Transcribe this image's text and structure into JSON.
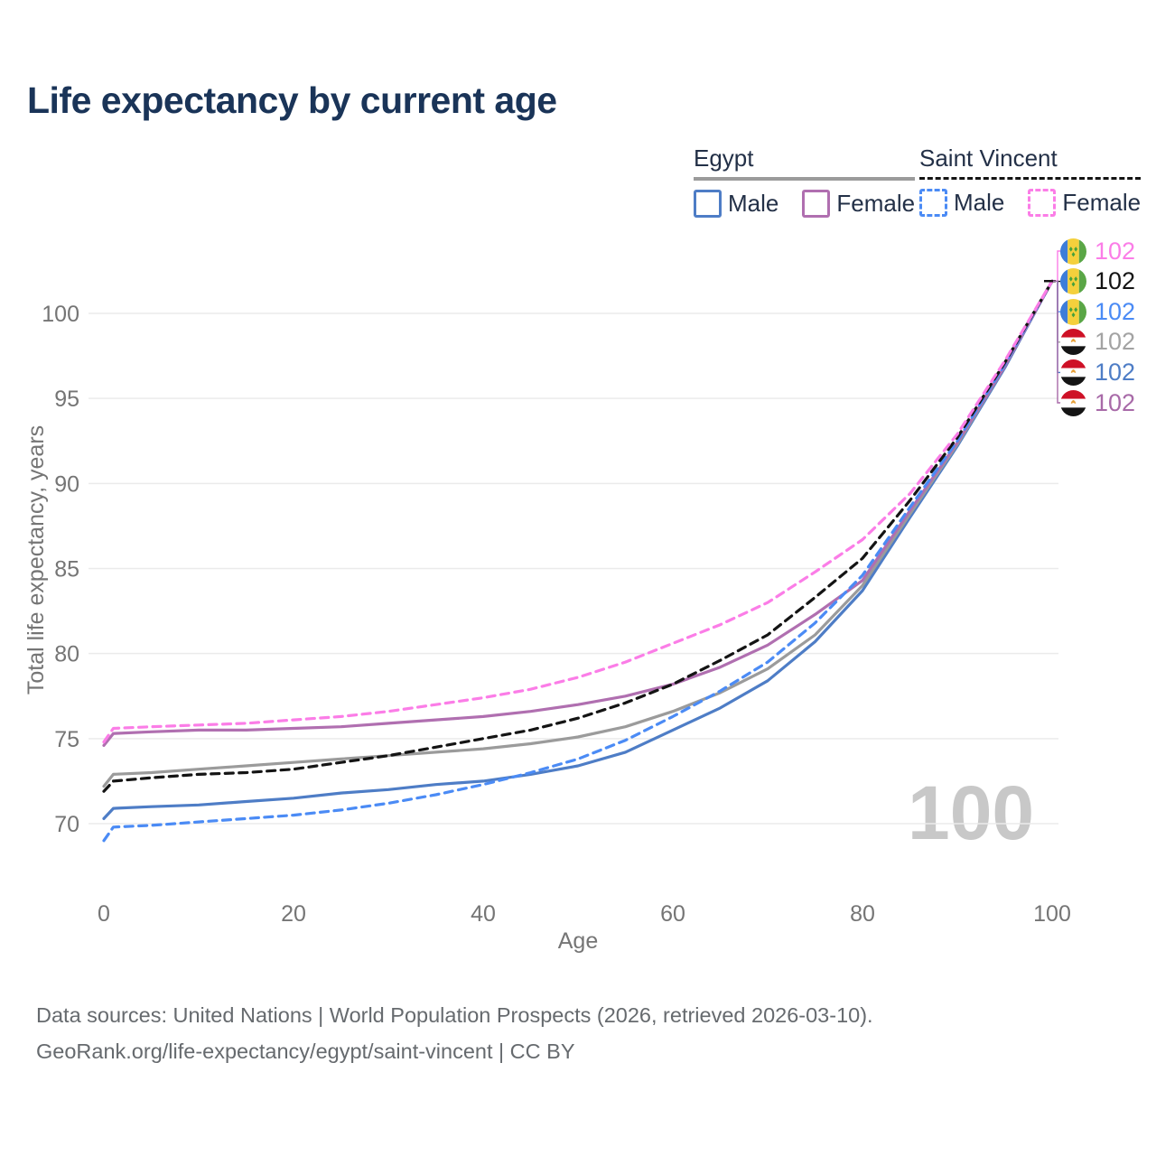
{
  "title": "Life expectancy by current age",
  "watermark_age": "100",
  "legend": {
    "groups": [
      {
        "name": "Egypt",
        "line_style": "solid",
        "line_color": "#9b9b9b",
        "items": [
          {
            "label": "Male",
            "color": "#4e7dc6"
          },
          {
            "label": "Female",
            "color": "#b06fb0"
          }
        ]
      },
      {
        "name": "Saint Vincent",
        "line_style": "dashed",
        "line_color": "#141414",
        "items": [
          {
            "label": "Male",
            "color": "#4b8bf5"
          },
          {
            "label": "Female",
            "color": "#fb7de7"
          }
        ]
      }
    ]
  },
  "chart_data": {
    "type": "line",
    "title": "Life expectancy by current age",
    "xlabel": "Age",
    "ylabel": "Total life expectancy, years",
    "xticks": [
      0,
      20,
      40,
      60,
      80,
      100
    ],
    "yticks": [
      70,
      75,
      80,
      85,
      90,
      95,
      100
    ],
    "xlim": [
      0,
      100
    ],
    "ylim": [
      68,
      103
    ],
    "grid": "horizontal",
    "x": [
      0,
      1,
      5,
      10,
      15,
      20,
      25,
      30,
      35,
      40,
      45,
      50,
      55,
      60,
      65,
      70,
      75,
      80,
      85,
      90,
      95,
      100
    ],
    "series": [
      {
        "name": "Egypt Male",
        "country": "Egypt",
        "sex": "Male",
        "color": "#4e7dc6",
        "dash": false,
        "values": [
          70.3,
          70.9,
          71.0,
          71.1,
          71.3,
          71.5,
          71.8,
          72.0,
          72.3,
          72.5,
          72.9,
          73.4,
          74.2,
          75.5,
          76.8,
          78.4,
          80.7,
          83.7,
          88.0,
          92.2,
          96.8,
          101.9
        ]
      },
      {
        "name": "Egypt All",
        "country": "Egypt",
        "sex": "All",
        "color": "#9b9b9b",
        "dash": false,
        "values": [
          72.2,
          72.9,
          73.0,
          73.2,
          73.4,
          73.6,
          73.8,
          74.0,
          74.2,
          74.4,
          74.7,
          75.1,
          75.7,
          76.6,
          77.7,
          79.1,
          81.1,
          84.0,
          88.2,
          92.3,
          96.9,
          101.9
        ]
      },
      {
        "name": "Egypt Female",
        "country": "Egypt",
        "sex": "Female",
        "color": "#b06fb0",
        "dash": false,
        "values": [
          74.6,
          75.3,
          75.4,
          75.5,
          75.5,
          75.6,
          75.7,
          75.9,
          76.1,
          76.3,
          76.6,
          77.0,
          77.5,
          78.2,
          79.2,
          80.5,
          82.3,
          84.3,
          88.4,
          92.4,
          96.9,
          101.9
        ]
      },
      {
        "name": "Saint Vincent Male",
        "country": "Saint Vincent",
        "sex": "Male",
        "color": "#4b8bf5",
        "dash": true,
        "values": [
          69.0,
          69.8,
          69.9,
          70.1,
          70.3,
          70.5,
          70.8,
          71.2,
          71.7,
          72.3,
          73.0,
          73.8,
          74.9,
          76.3,
          77.8,
          79.5,
          81.8,
          84.6,
          88.6,
          92.5,
          97.0,
          101.9
        ]
      },
      {
        "name": "Saint Vincent All",
        "country": "Saint Vincent",
        "sex": "All",
        "color": "#141414",
        "dash": true,
        "values": [
          71.9,
          72.5,
          72.7,
          72.9,
          73.0,
          73.2,
          73.6,
          74.0,
          74.5,
          75.0,
          75.5,
          76.2,
          77.1,
          78.2,
          79.6,
          81.1,
          83.3,
          85.6,
          89.0,
          92.7,
          97.1,
          101.9
        ]
      },
      {
        "name": "Saint Vincent Female",
        "country": "Saint Vincent",
        "sex": "Female",
        "color": "#fb7de7",
        "dash": true,
        "values": [
          74.8,
          75.6,
          75.7,
          75.8,
          75.9,
          76.1,
          76.3,
          76.6,
          77.0,
          77.4,
          77.9,
          78.6,
          79.5,
          80.6,
          81.7,
          83.0,
          84.8,
          86.7,
          89.4,
          92.9,
          97.2,
          101.9
        ]
      }
    ]
  },
  "end_labels": [
    {
      "flag": "saint-vincent",
      "value": "102",
      "color": "#fb7de7"
    },
    {
      "flag": "saint-vincent",
      "value": "102",
      "color": "#141414"
    },
    {
      "flag": "saint-vincent",
      "value": "102",
      "color": "#4b8bf5"
    },
    {
      "flag": "egypt",
      "value": "102",
      "color": "#a3a3a3"
    },
    {
      "flag": "egypt",
      "value": "102",
      "color": "#4e7dc6"
    },
    {
      "flag": "egypt",
      "value": "102",
      "color": "#a86aa8"
    }
  ],
  "footer": {
    "line1": "Data sources: United Nations | World Population Prospects (2026, retrieved 2026-03-10).",
    "line2": "GeoRank.org/life-expectancy/egypt/saint-vincent | CC BY"
  }
}
